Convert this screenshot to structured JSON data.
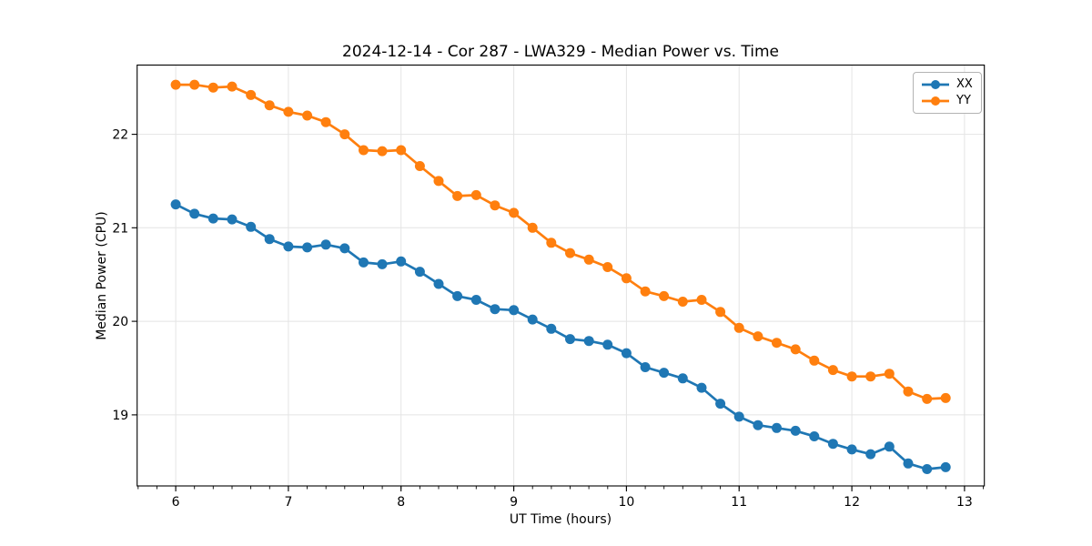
{
  "chart_data": {
    "type": "line",
    "title": "2024-12-14 - Cor 287 - LWA329 - Median Power vs. Time",
    "xlabel": "UT Time (hours)",
    "ylabel": "Median Power (CPU)",
    "xlim": [
      5.658,
      13.176
    ],
    "ylim": [
      18.24,
      22.74
    ],
    "x_ticks": [
      6,
      7,
      8,
      9,
      10,
      11,
      12,
      13
    ],
    "y_ticks": [
      19,
      20,
      21,
      22
    ],
    "x_minor_step": 0.16667,
    "grid": "major-only",
    "grid_color": "#e4e4e4",
    "background_color": "#ffffff",
    "axes_edge_color": "#000000",
    "legend_position": "upper-right",
    "marker": "circle",
    "x": [
      6.0,
      6.167,
      6.333,
      6.5,
      6.667,
      6.833,
      7.0,
      7.167,
      7.333,
      7.5,
      7.667,
      7.833,
      8.0,
      8.167,
      8.333,
      8.5,
      8.667,
      8.833,
      9.0,
      9.167,
      9.333,
      9.5,
      9.667,
      9.833,
      10.0,
      10.167,
      10.333,
      10.5,
      10.667,
      10.833,
      11.0,
      11.167,
      11.333,
      11.5,
      11.667,
      11.833,
      12.0,
      12.167,
      12.333,
      12.5,
      12.667,
      12.833
    ],
    "series": [
      {
        "name": "XX",
        "color": "#1f77b4",
        "values": [
          21.25,
          21.15,
          21.1,
          21.09,
          21.01,
          20.88,
          20.8,
          20.79,
          20.82,
          20.78,
          20.63,
          20.61,
          20.64,
          20.53,
          20.4,
          20.27,
          20.23,
          20.13,
          20.12,
          20.02,
          19.92,
          19.81,
          19.79,
          19.75,
          19.66,
          19.51,
          19.45,
          19.39,
          19.29,
          19.12,
          18.98,
          18.89,
          18.86,
          18.83,
          18.77,
          18.69,
          18.63,
          18.58,
          18.66,
          18.48,
          18.42,
          18.44
        ]
      },
      {
        "name": "YY",
        "color": "#ff7f0e",
        "values": [
          22.53,
          22.53,
          22.5,
          22.51,
          22.42,
          22.31,
          22.24,
          22.2,
          22.13,
          22.0,
          21.83,
          21.82,
          21.83,
          21.66,
          21.5,
          21.34,
          21.35,
          21.24,
          21.16,
          21.0,
          20.84,
          20.73,
          20.66,
          20.58,
          20.46,
          20.32,
          20.27,
          20.21,
          20.23,
          20.1,
          19.93,
          19.84,
          19.77,
          19.7,
          19.58,
          19.48,
          19.41,
          19.41,
          19.44,
          19.25,
          19.17,
          19.18
        ]
      }
    ]
  }
}
